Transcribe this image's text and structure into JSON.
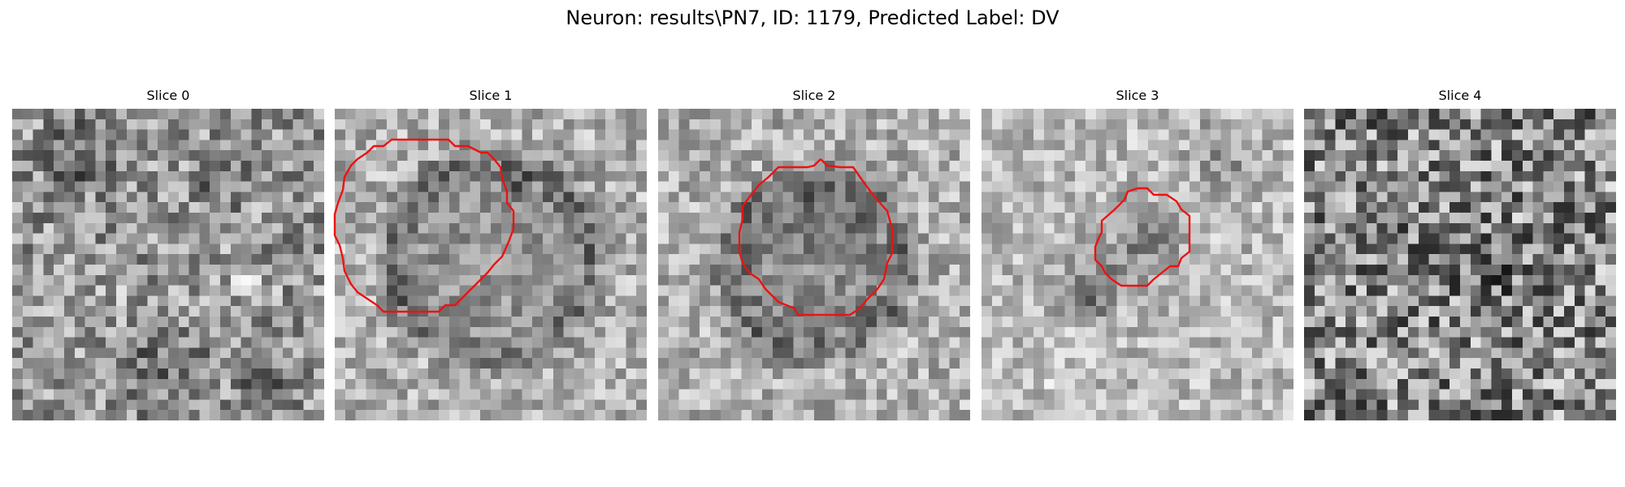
{
  "figure": {
    "title": "Neuron: results\\PN7, ID: 1179, Predicted Label: DV",
    "contour_color": "#ee1111",
    "colormap": "gray"
  },
  "slices": [
    {
      "title": "Slice 0",
      "has_contour": false
    },
    {
      "title": "Slice 1",
      "has_contour": true
    },
    {
      "title": "Slice 2",
      "has_contour": true
    },
    {
      "title": "Slice 3",
      "has_contour": true
    },
    {
      "title": "Slice 4",
      "has_contour": false
    }
  ]
}
